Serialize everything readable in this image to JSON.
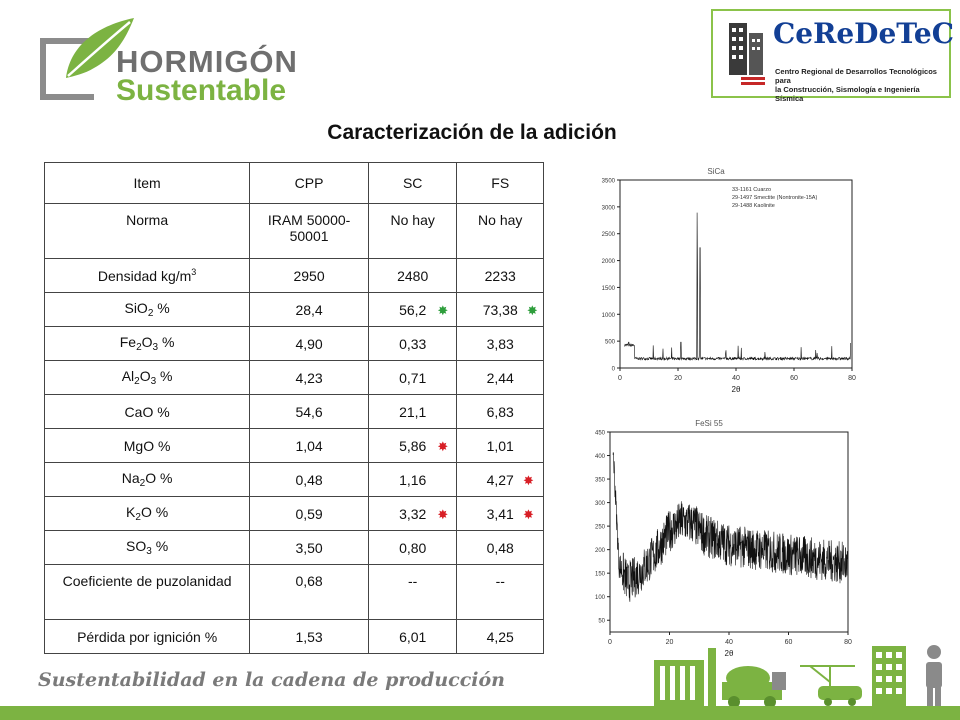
{
  "logo_left": {
    "line1": "HORMIGÓN",
    "line2": "Sustentable"
  },
  "logo_right": {
    "brand": "CeReDeTeC",
    "subtitle_1": "Centro Regional de Desarrollos Tecnológicos para",
    "subtitle_2": "la Construcción, Sismología e Ingeniería Sísmica"
  },
  "title": "Caracterización de la adición",
  "table": {
    "headers": [
      "Item",
      "CPP",
      "SC",
      "FS"
    ],
    "rows": [
      {
        "item": "Norma",
        "cpp": "IRAM 50000-50001",
        "sc": "No hay",
        "fs": "No hay"
      },
      {
        "item_pre": "Densidad kg/m",
        "item_sup": "3",
        "cpp": "2950",
        "sc": "2480",
        "fs": "2233"
      },
      {
        "item_a": "SiO",
        "item_sub": "2",
        "item_b": " %",
        "cpp": "28,4",
        "sc": "56,2",
        "fs": "73,38",
        "sc_mark": "green",
        "fs_mark": "green"
      },
      {
        "item_a": "Fe",
        "item_sub": "2",
        "item_b": "O",
        "item_sub2": "3",
        "item_c": " %",
        "cpp": "4,90",
        "sc": "0,33",
        "fs": "3,83"
      },
      {
        "item_a": "Al",
        "item_sub": "2",
        "item_b": "O",
        "item_sub2": "3",
        "item_c": " %",
        "cpp": "4,23",
        "sc": "0,71",
        "fs": "2,44"
      },
      {
        "item": "CaO %",
        "cpp": "54,6",
        "sc": "21,1",
        "fs": "6,83"
      },
      {
        "item": "MgO %",
        "cpp": "1,04",
        "sc": "5,86",
        "fs": "1,01",
        "sc_mark": "red"
      },
      {
        "item_a": "Na",
        "item_sub": "2",
        "item_b": "O %",
        "cpp": "0,48",
        "sc": "1,16",
        "fs": "4,27",
        "fs_mark": "red"
      },
      {
        "item_a": "K",
        "item_sub": "2",
        "item_b": "O %",
        "cpp": "0,59",
        "sc": "3,32",
        "fs": "3,41",
        "sc_mark": "red",
        "fs_mark": "red"
      },
      {
        "item_a": "SO",
        "item_sub": "3",
        "item_b": " %",
        "cpp": "3,50",
        "sc": "0,80",
        "fs": "0,48"
      },
      {
        "item": "Coeficiente de puzolanidad",
        "cpp": "0,68",
        "sc": "--",
        "fs": "--"
      },
      {
        "item": "Pérdida por ignición %",
        "cpp": "1,53",
        "sc": "6,01",
        "fs": "4,25"
      }
    ]
  },
  "chart_data": [
    {
      "type": "line",
      "title": "SiCa",
      "xlabel": "2θ",
      "ylabel": "",
      "xlim": [
        0,
        80
      ],
      "ylim": [
        0,
        3500
      ],
      "x_ticks": [
        "0",
        "20",
        "40",
        "60",
        "80"
      ],
      "y_ticks": [
        "0",
        "500",
        "1000",
        "1500",
        "2000",
        "2500",
        "3000",
        "3500"
      ],
      "legend": [
        "33-1161 Cuarzo",
        "29-1497 Smectite (Nontronite-15A)",
        "29-1488 Kaolinite"
      ],
      "peaks": [
        {
          "x": 3,
          "y": 600
        },
        {
          "x": 21,
          "y": 600
        },
        {
          "x": 26.6,
          "y": 3100
        },
        {
          "x": 27.6,
          "y": 2800
        },
        {
          "x": 36.5,
          "y": 380
        },
        {
          "x": 50,
          "y": 320
        },
        {
          "x": 68,
          "y": 300
        }
      ]
    },
    {
      "type": "line",
      "title": "FeSi 55",
      "xlabel": "2θ",
      "ylabel": "",
      "xlim": [
        0,
        80
      ],
      "ylim": [
        25,
        450
      ],
      "x_ticks": [
        "0",
        "20",
        "40",
        "60",
        "80"
      ],
      "y_ticks": [
        "50",
        "100",
        "150",
        "200",
        "250",
        "300",
        "350",
        "400",
        "450"
      ],
      "envelope": [
        {
          "x": 1,
          "y": 420
        },
        {
          "x": 3,
          "y": 170
        },
        {
          "x": 6,
          "y": 130
        },
        {
          "x": 10,
          "y": 150
        },
        {
          "x": 15,
          "y": 190
        },
        {
          "x": 20,
          "y": 240
        },
        {
          "x": 24,
          "y": 260
        },
        {
          "x": 28,
          "y": 255
        },
        {
          "x": 32,
          "y": 230
        },
        {
          "x": 40,
          "y": 210
        },
        {
          "x": 50,
          "y": 200
        },
        {
          "x": 60,
          "y": 190
        },
        {
          "x": 70,
          "y": 180
        },
        {
          "x": 80,
          "y": 170
        }
      ]
    }
  ],
  "footer": {
    "slogan": "Sustentabilidad en la cadena de producción"
  },
  "colors": {
    "brand_green": "#7cb342",
    "mark_green": "#2e9e3c",
    "mark_red": "#d81f26",
    "ceredetec_blue": "#123f95"
  }
}
